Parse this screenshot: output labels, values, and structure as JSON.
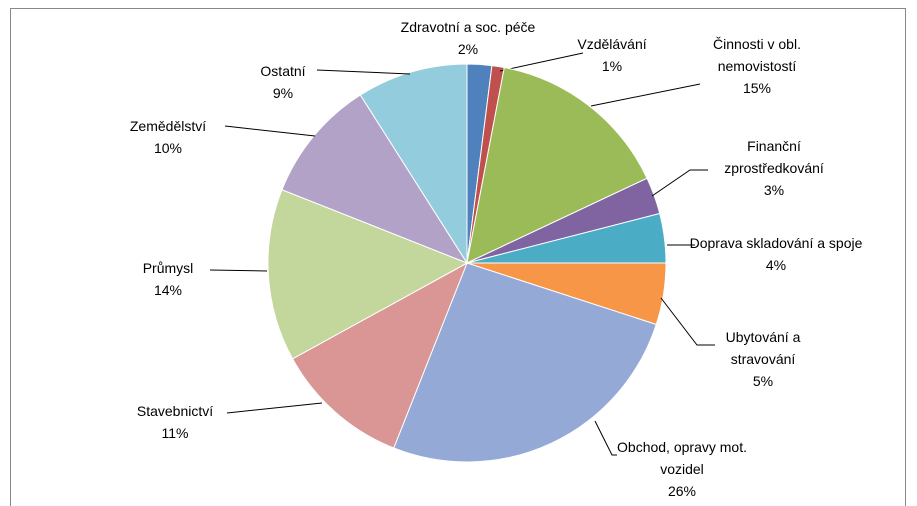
{
  "chart_data": {
    "type": "pie",
    "categories": [
      "Zdravotní a soc. péče",
      "Vzdělávání",
      "Činnosti v obl. nemovistostí",
      "Finanční zprostředkování",
      "Doprava skladování a spoje",
      "Ubytování a stravování",
      "Obchod, opravy mot. vozidel",
      "Stavebnictví",
      "Průmysl",
      "Zemědělství",
      "Ostatní"
    ],
    "values": [
      2,
      1,
      15,
      3,
      4,
      5,
      26,
      11,
      14,
      10,
      9
    ],
    "value_labels": [
      "2%",
      "1%",
      "15%",
      "3%",
      "4%",
      "5%",
      "26%",
      "11%",
      "14%",
      "10%",
      "9%"
    ],
    "colors": [
      "#4f81bd",
      "#c0504d",
      "#9bbb59",
      "#8064a2",
      "#4bacc6",
      "#f79646",
      "#95a9d6",
      "#d99694",
      "#c3d69b",
      "#b2a2c7",
      "#93cddd"
    ]
  }
}
